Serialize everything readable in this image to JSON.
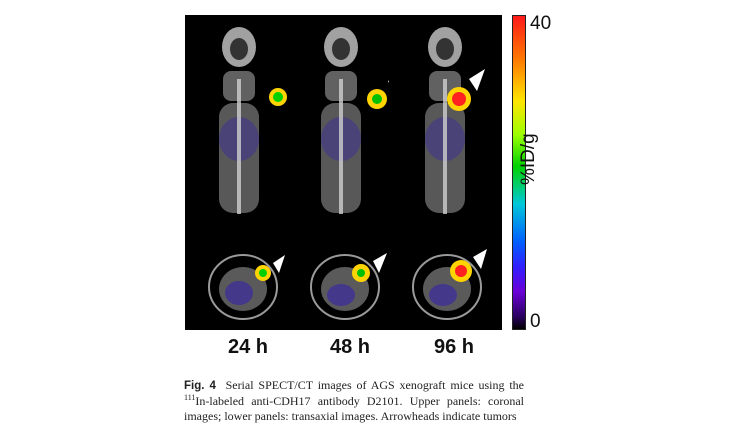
{
  "figure": {
    "time_labels": [
      "24 h",
      "48 h",
      "96 h"
    ],
    "colorbar": {
      "max_label": "40",
      "min_label": "0",
      "unit_label": "%ID/g"
    },
    "caption": {
      "label": "Fig. 4",
      "text_1": "Serial SPECT/CT images of AGS xenograft mice using the ",
      "superscript": "111",
      "text_2": "In-labeled anti-CDH17 antibody D2101. Upper panels: coronal images; lower panels: transaxial images. Arrowheads indicate tumors"
    },
    "uptake_levels": [
      0.55,
      0.6,
      0.95
    ]
  }
}
